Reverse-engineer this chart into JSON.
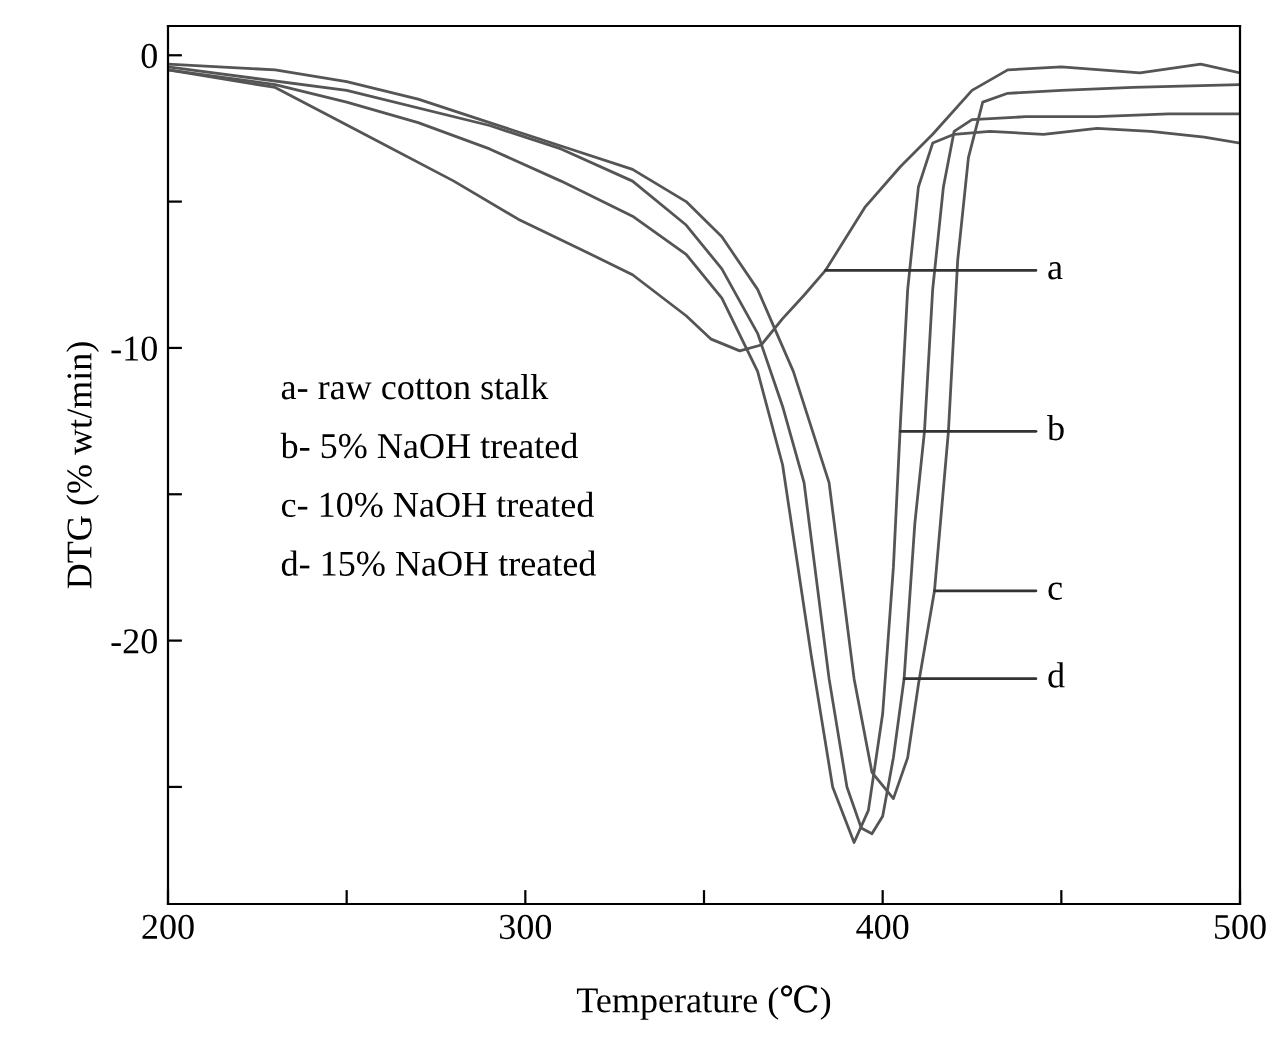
{
  "chart_data": {
    "type": "line",
    "xlabel": "Temperature (℃)",
    "ylabel": "DTG (% wt/min)",
    "xlim": [
      200,
      500
    ],
    "xticks": [
      200,
      {
        "value": 250,
        "label": null
      },
      300,
      {
        "value": 350,
        "label": null
      },
      400,
      {
        "value": 450,
        "label": null
      },
      500
    ],
    "ylim": [
      -29,
      1
    ],
    "yticks": [
      0,
      {
        "value": -5,
        "label": null
      },
      -10,
      {
        "value": -15,
        "label": null
      },
      -20,
      {
        "value": -25,
        "label": null
      }
    ],
    "grid": false,
    "legend": false,
    "marker": "none",
    "line_style": "solid",
    "series": [
      {
        "color": "#555555",
        "x": [
          200,
          230,
          255,
          280,
          298,
          315,
          330,
          345,
          352,
          360,
          366,
          372,
          378,
          384,
          395,
          405,
          414,
          425,
          435,
          450,
          472,
          489,
          500
        ],
        "values": [
          -0.5,
          -1.1,
          -2.7,
          -4.3,
          -5.6,
          -6.6,
          -7.5,
          -8.9,
          -9.7,
          -10.1,
          -9.9,
          -9.0,
          -8.2,
          -7.35,
          -5.2,
          -3.8,
          -2.7,
          -1.2,
          -0.5,
          -0.4,
          -0.6,
          -0.3,
          -0.6
        ]
      },
      {
        "color": "#555555",
        "x": [
          200,
          230,
          250,
          270,
          290,
          310,
          330,
          345,
          355,
          365,
          372,
          380,
          386,
          392,
          396,
          400,
          403,
          405,
          407,
          410,
          414,
          420,
          430,
          445,
          460,
          475,
          490,
          500
        ],
        "values": [
          -0.5,
          -1.0,
          -1.6,
          -2.3,
          -3.2,
          -4.3,
          -5.5,
          -6.8,
          -8.3,
          -10.8,
          -14.0,
          -20.5,
          -25.0,
          -26.9,
          -25.8,
          -22.5,
          -17.5,
          -12.5,
          -8.0,
          -4.5,
          -3.0,
          -2.7,
          -2.6,
          -2.7,
          -2.5,
          -2.6,
          -2.8,
          -3.0
        ]
      },
      {
        "color": "#555555",
        "x": [
          200,
          230,
          250,
          270,
          290,
          310,
          330,
          345,
          355,
          365,
          375,
          385,
          392,
          397,
          403,
          407,
          410,
          414.5,
          418.4,
          421,
          424,
          428,
          435,
          450,
          470,
          500
        ],
        "values": [
          -0.3,
          -0.5,
          -0.9,
          -1.5,
          -2.3,
          -3.1,
          -3.9,
          -5.0,
          -6.2,
          -8.0,
          -10.8,
          -14.6,
          -21.3,
          -24.5,
          -25.4,
          -24.0,
          -21.5,
          -18.3,
          -12.85,
          -7.0,
          -3.5,
          -1.6,
          -1.3,
          -1.2,
          -1.1,
          -1.0
        ]
      },
      {
        "color": "#555555",
        "x": [
          200,
          250,
          290,
          310,
          330,
          345,
          355,
          365,
          372,
          378,
          385,
          390,
          394,
          397,
          400,
          403,
          406,
          409,
          411.7,
          414,
          417,
          420,
          425,
          440,
          460,
          480,
          500
        ],
        "values": [
          -0.4,
          -1.2,
          -2.4,
          -3.2,
          -4.3,
          -5.8,
          -7.3,
          -9.5,
          -12.0,
          -14.6,
          -21.3,
          -25.0,
          -26.4,
          -26.6,
          -26.0,
          -24.0,
          -21.3,
          -16.0,
          -12.85,
          -8.0,
          -4.5,
          -2.6,
          -2.2,
          -2.1,
          -2.1,
          -2.0,
          -2.0
        ]
      }
    ],
    "annotations": [
      {
        "text": "a",
        "x": 384,
        "y": -7.35
      },
      {
        "text": "b",
        "x": 405,
        "y": -12.85
      },
      {
        "text": "c",
        "x": 414.5,
        "y": -18.3
      },
      {
        "text": "d",
        "x": 406,
        "y": -21.3
      },
      "a- raw cotton stalk",
      "b- 5% NaOH treated",
      "c- 10% NaOH treated",
      "d- 15% NaOH treated"
    ]
  }
}
